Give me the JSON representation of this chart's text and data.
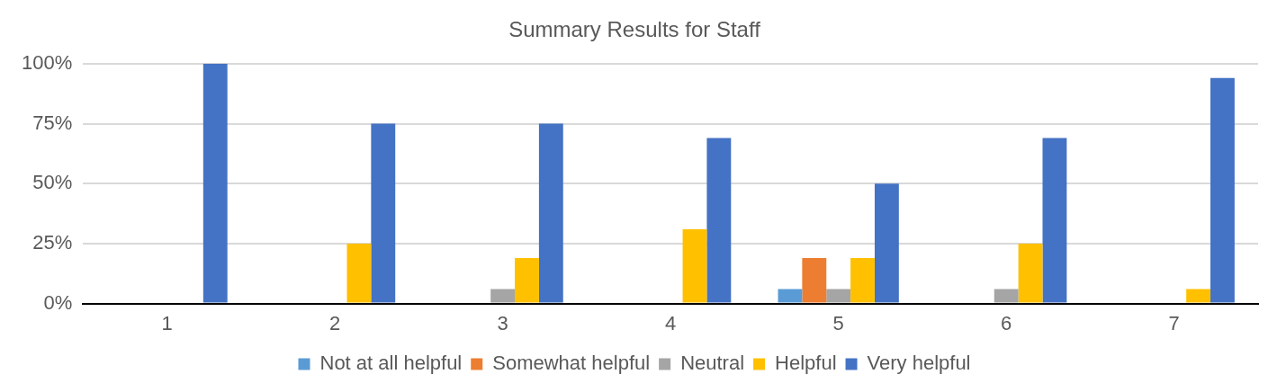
{
  "chart_data": {
    "type": "bar",
    "title": "Summary Results for Staff",
    "categories": [
      "1",
      "2",
      "3",
      "4",
      "5",
      "6",
      "7"
    ],
    "series": [
      {
        "name": "Not at all helpful",
        "color": "#5b9bd5",
        "values": [
          0,
          0,
          0,
          0,
          6,
          0,
          0
        ]
      },
      {
        "name": "Somewhat helpful",
        "color": "#ed7d31",
        "values": [
          0,
          0,
          0,
          0,
          19,
          0,
          0
        ]
      },
      {
        "name": "Neutral",
        "color": "#a5a5a5",
        "values": [
          0,
          0,
          6,
          0,
          6,
          6,
          0
        ]
      },
      {
        "name": "Helpful",
        "color": "#ffc000",
        "values": [
          0,
          25,
          19,
          31,
          19,
          25,
          6
        ]
      },
      {
        "name": "Very helpful",
        "color": "#4472c4",
        "values": [
          100,
          75,
          75,
          69,
          50,
          69,
          94
        ]
      }
    ],
    "ylim": [
      0,
      100
    ],
    "yticks": [
      {
        "value": 0,
        "label": "0%"
      },
      {
        "value": 25,
        "label": "25%"
      },
      {
        "value": 50,
        "label": "50%"
      },
      {
        "value": 75,
        "label": "75%"
      },
      {
        "value": 100,
        "label": "100%"
      }
    ],
    "grid": "y",
    "legend": "bottom"
  }
}
